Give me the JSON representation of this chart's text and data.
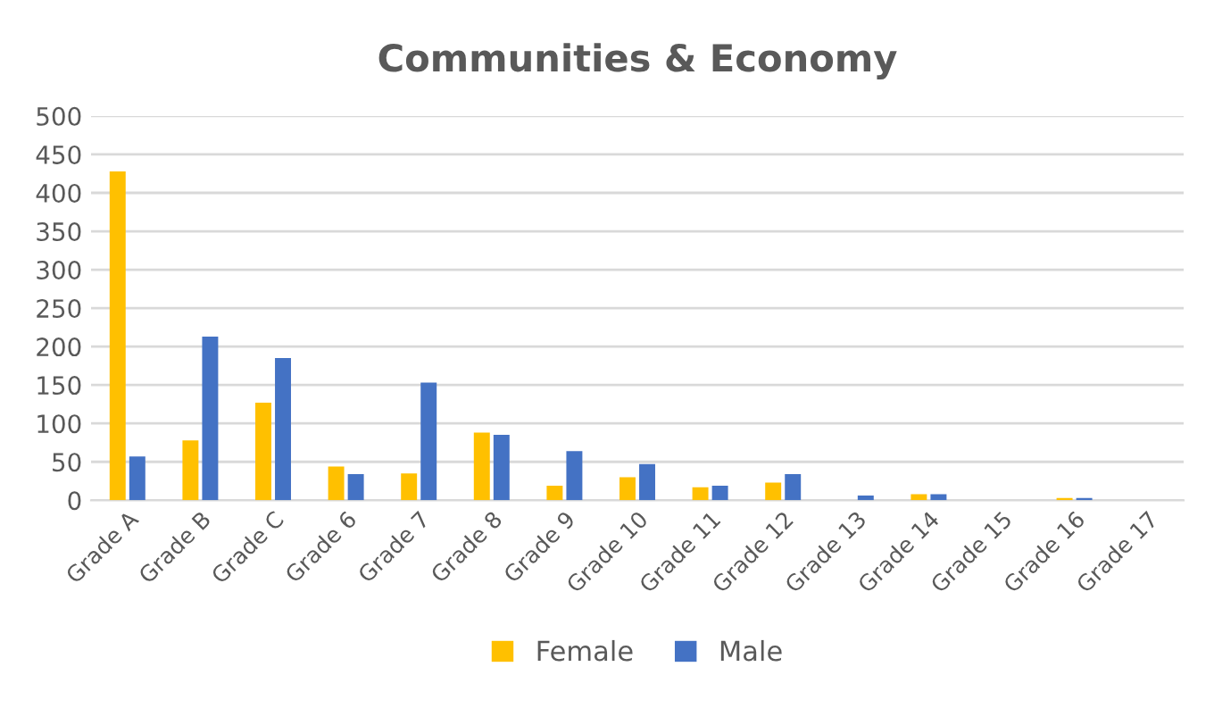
{
  "chart_data": {
    "type": "bar",
    "title": "Communities & Economy",
    "categories": [
      "Grade A",
      "Grade B",
      "Grade C",
      "Grade 6",
      "Grade 7",
      "Grade 8",
      "Grade 9",
      "Grade 10",
      "Grade 11",
      "Grade 12",
      "Grade 13",
      "Grade 14",
      "Grade 15",
      "Grade 16",
      "Grade 17"
    ],
    "series": [
      {
        "name": "Female",
        "color": "#ffc000",
        "values": [
          428,
          78,
          127,
          44,
          35,
          88,
          19,
          30,
          17,
          23,
          0,
          8,
          0,
          3,
          0
        ]
      },
      {
        "name": "Male",
        "color": "#4472c4",
        "values": [
          57,
          213,
          185,
          34,
          153,
          85,
          64,
          47,
          19,
          34,
          6,
          8,
          0,
          3,
          0
        ]
      }
    ],
    "ylim": [
      0,
      500
    ],
    "yticks": [
      0,
      50,
      100,
      150,
      200,
      250,
      300,
      350,
      400,
      450,
      500
    ],
    "grid": "y",
    "legend": "bottom"
  }
}
